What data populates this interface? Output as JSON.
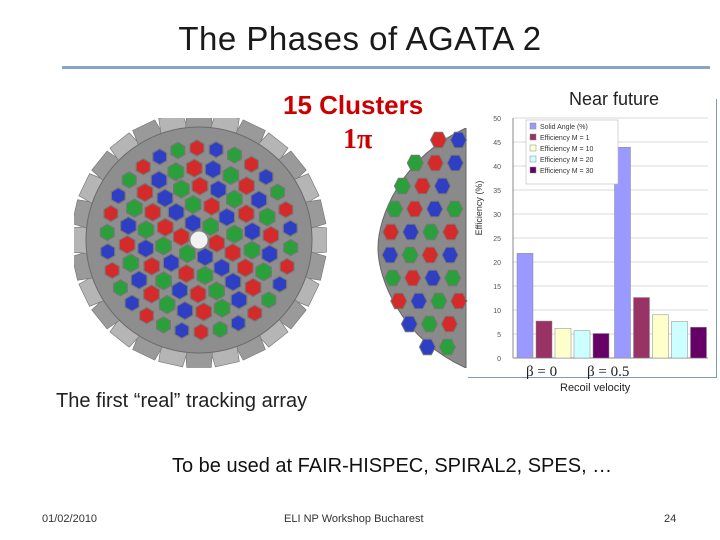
{
  "slide": {
    "title": "The Phases of AGATA   2",
    "clusters_label": "15 Clusters",
    "solid_angle_label": "1π",
    "tracking_caption": "The first “real” tracking array",
    "used_at": "To be used at FAIR-HISPEC, SPIRAL2, SPES, …",
    "near_future": "Near future",
    "beta0": "β = 0",
    "beta05": "β = 0.5",
    "recoil_velocity": "Recoil velocity",
    "footer": {
      "date": "01/02/2010",
      "event": "ELI NP Workshop Bucharest",
      "page": "24"
    }
  },
  "colors": {
    "rule": "#8aa3c8",
    "accent_red": "#cc0000"
  },
  "chart_data": {
    "type": "bar",
    "ylabel": "Efficiency (%)",
    "ylim": [
      0,
      50
    ],
    "yticks": [
      0,
      5,
      10,
      15,
      20,
      25,
      30,
      35,
      40,
      45,
      50
    ],
    "categories": [
      "β = 0",
      "β = 0.5"
    ],
    "grid": true,
    "legend_position": "top-left",
    "series": [
      {
        "name": "Solid Angle (%)",
        "color": "#9999ff",
        "values": [
          21.8,
          43.9
        ]
      },
      {
        "name": "Efficiency M = 1",
        "color": "#993366",
        "values": [
          7.7,
          12.6
        ]
      },
      {
        "name": "Efficiency M = 10",
        "color": "#ffffcc",
        "values": [
          6.2,
          9.0
        ]
      },
      {
        "name": "Efficiency M = 20",
        "color": "#ccffff",
        "values": [
          5.7,
          7.6
        ]
      },
      {
        "name": "Efficiency M = 30",
        "color": "#660066",
        "values": [
          5.1,
          6.4
        ]
      }
    ]
  }
}
